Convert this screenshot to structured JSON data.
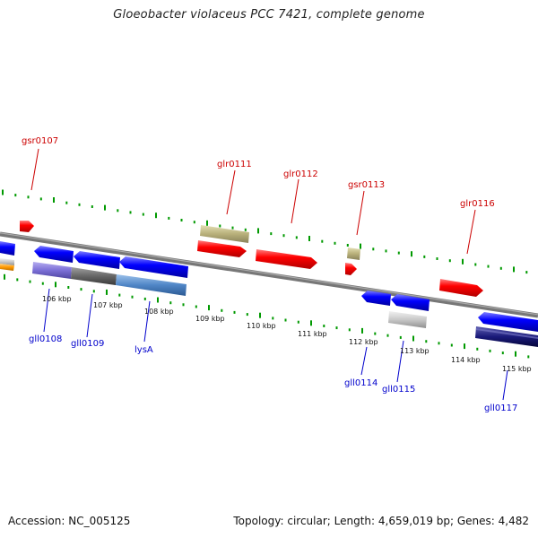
{
  "title": "Gloeobacter violaceus PCC 7421, complete genome",
  "footer": {
    "accession": "Accession: NC_005125",
    "summary": "Topology: circular; Length: 4,659,019 bp; Genes: 4,482"
  },
  "colors": {
    "forward_gene": "#ff0000",
    "reverse_gene": "#0000ff",
    "forward_label": "#cc0000",
    "reverse_label": "#0000cc",
    "tick": "#009900",
    "backbone": "#777777",
    "rna_tan": "#b8b07a",
    "cog_purple": "#7b6fd6",
    "cog_gray": "#666666",
    "cog_steel": "#4f86c6",
    "cog_silver": "#c8c8c8",
    "cog_navy": "#1a1a7a",
    "orange": "#ff9900"
  },
  "ticks": {
    "labels": [
      "106 kbp",
      "107 kbp",
      "108 kbp",
      "109 kbp",
      "110 kbp",
      "111 kbp",
      "112 kbp",
      "113 kbp",
      "114 kbp",
      "115 kbp"
    ]
  },
  "genes": {
    "forward": [
      "gsr0107",
      "glr0111",
      "glr0112",
      "gsr0113",
      "glr0116"
    ],
    "reverse": [
      "gll0108",
      "gll0109",
      "lysA",
      "gll0114",
      "gll0115",
      "gll0117"
    ]
  }
}
